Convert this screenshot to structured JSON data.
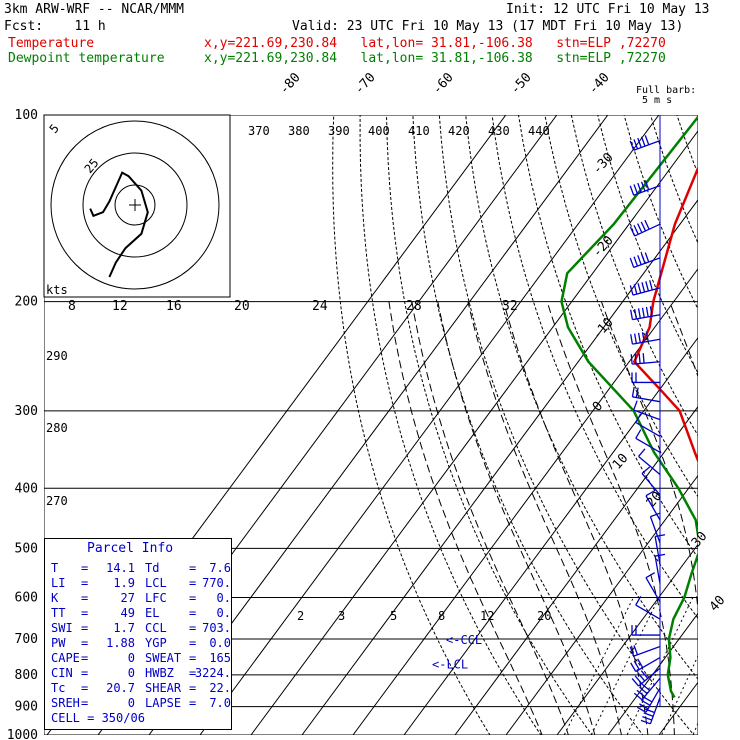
{
  "header": {
    "model": "3km ARW-WRF -- NCAR/MMM",
    "init": "Init: 12 UTC Fri 10 May 13",
    "fcst": "Fcst:    11 h",
    "valid": "Valid: 23 UTC Fri 10 May 13 (17 MDT Fri 10 May 13)",
    "temp_label": "Temperature",
    "temp_loc": "x,y=221.69,230.84   lat,lon= 31.81,-106.38   stn=ELP ,72270",
    "dew_label": "Dewpoint temperature",
    "dew_loc": "x,y=221.69,230.84   lat,lon= 31.81,-106.38   stn=ELP ,72270"
  },
  "colors": {
    "temperature": "#e00000",
    "dewpoint": "#008000",
    "hodograph": "#000000",
    "wind_barbs": "#0000c8",
    "grid": "#000000",
    "dry_adiabat": "#000000",
    "moist_adiabat": "#000000",
    "mixing_ratio": "#000000",
    "parcel_text": "#0000c8"
  },
  "parcel": {
    "title": "Parcel Info",
    "rows": [
      {
        "l1": "T",
        "v1": "14.1",
        "l2": "Td",
        "v2": "7.6"
      },
      {
        "l1": "LI",
        "v1": "1.9",
        "l2": "LCL",
        "v2": "770."
      },
      {
        "l1": "K",
        "v1": "27",
        "l2": "LFC",
        "v2": "0."
      },
      {
        "l1": "TT",
        "v1": "49",
        "l2": "EL",
        "v2": "0."
      },
      {
        "l1": "SWI",
        "v1": "1.7",
        "l2": "CCL",
        "v2": "703."
      },
      {
        "l1": "PW",
        "v1": "1.88",
        "l2": "YGP",
        "v2": "0.0"
      },
      {
        "l1": "CAPE",
        "v1": "0",
        "l2": "SWEAT",
        "v2": "165"
      },
      {
        "l1": "CIN",
        "v1": "0",
        "l2": "HWBZ",
        "v2": "3224."
      },
      {
        "l1": "Tc",
        "v1": "20.7",
        "l2": "SHEAR",
        "v2": "22."
      },
      {
        "l1": "SREH",
        "v1": "0",
        "l2": "LAPSE",
        "v2": "7.0"
      }
    ],
    "cell": "CELL = 350/06"
  },
  "chart_data": {
    "type": "skew-t",
    "pressure_levels": [
      100,
      200,
      300,
      400,
      500,
      600,
      700,
      800,
      900,
      1000
    ],
    "isotherm_labels": [
      "-80",
      "-70",
      "-60",
      "-50",
      "-40",
      "-30",
      "-20",
      "-10",
      "0",
      "10",
      "20",
      "30",
      "40"
    ],
    "isentrope_labels_top": [
      "370",
      "380",
      "390",
      "400",
      "410",
      "420",
      "430",
      "440"
    ],
    "isentrope_labels_left": [
      "290",
      "280",
      "270"
    ],
    "mixing_ratio_labels": [
      "2",
      "3",
      "5",
      "8",
      "12",
      "20"
    ],
    "hodograph": {
      "kts_label": "kts",
      "speed_ticks": [
        "8",
        "12",
        "16",
        "20",
        "24",
        "28",
        "32"
      ],
      "ring_labels": [
        "5",
        "25"
      ],
      "u": [
        -8,
        -6,
        -3,
        2,
        4,
        2,
        -2,
        -4,
        -6,
        -8,
        -10,
        -13,
        -14
      ],
      "v": [
        -20,
        -16,
        -12,
        -8,
        -2,
        4,
        8,
        9,
        5,
        1,
        -2,
        -3,
        -1
      ]
    },
    "temperature": {
      "name": "Temperature",
      "p": [
        100,
        150,
        200,
        220,
        250,
        280,
        300,
        350,
        400,
        450,
        500,
        550,
        600,
        650,
        700,
        750,
        800,
        850,
        870
      ],
      "t": [
        -68,
        -61,
        -54,
        -51,
        -49,
        -39,
        -33,
        -24,
        -16,
        -9.5,
        -4,
        1,
        5,
        9,
        10.5,
        10.5,
        12,
        14,
        14.1
      ]
    },
    "dewpoint": {
      "name": "Dewpoint temperature",
      "p": [
        100,
        150,
        180,
        200,
        220,
        250,
        300,
        350,
        400,
        450,
        500,
        550,
        600,
        650,
        700,
        750,
        800,
        850,
        870
      ],
      "t": [
        -72,
        -73,
        -75,
        -72,
        -67,
        -58,
        -42,
        -32,
        -22,
        -14,
        -9,
        -7,
        -5,
        -4,
        -2,
        1,
        3,
        6,
        7.6
      ]
    },
    "lcl_label": "<-LCL",
    "ccl_label": "<-CCL",
    "lcl_p": 770,
    "ccl_p": 703,
    "wind_profile": {
      "title": "Full barb:",
      "subtitle": "5 m s",
      "p": [
        110,
        130,
        150,
        170,
        190,
        210,
        230,
        250,
        270,
        290,
        310,
        330,
        350,
        380,
        410,
        450,
        490,
        530,
        570,
        610,
        650,
        690,
        720,
        750,
        780,
        810,
        840,
        870
      ],
      "dir": [
        250,
        250,
        245,
        250,
        255,
        260,
        260,
        265,
        270,
        280,
        290,
        300,
        300,
        310,
        320,
        330,
        340,
        350,
        350,
        330,
        300,
        270,
        250,
        240,
        230,
        220,
        210,
        200
      ],
      "spd": [
        25,
        25,
        25,
        25,
        30,
        30,
        25,
        20,
        10,
        10,
        8,
        6,
        8,
        8,
        8,
        8,
        6,
        5,
        5,
        5,
        8,
        10,
        14,
        18,
        20,
        22,
        22,
        20
      ]
    }
  }
}
